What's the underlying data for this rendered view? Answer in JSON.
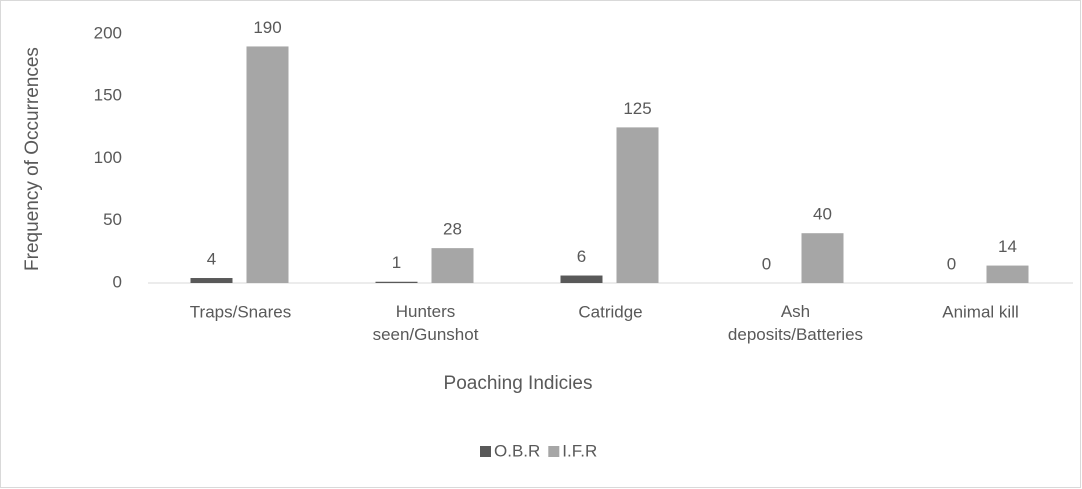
{
  "chart_data": {
    "type": "bar",
    "x_label": "Poaching Indicies",
    "y_label": "Frequency of Occurrences",
    "categories": [
      "Traps/Snares",
      "Hunters seen/Gunshot",
      "Catridge",
      "Ash deposits/Batteries",
      "Animal kill"
    ],
    "series": [
      {
        "name": "O.B.R",
        "color": "#595959",
        "values": [
          4,
          1,
          6,
          0,
          0
        ]
      },
      {
        "name": "I.F.R",
        "color": "#a6a6a6",
        "values": [
          190,
          28,
          125,
          40,
          14
        ]
      }
    ],
    "ylim": [
      0,
      200
    ],
    "yticks": [
      0,
      50,
      100,
      150,
      200
    ],
    "grid": false,
    "legend": "bottom"
  }
}
